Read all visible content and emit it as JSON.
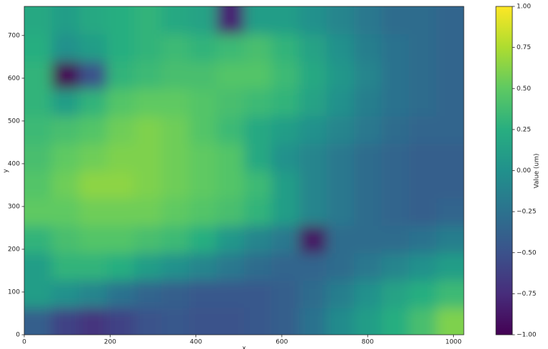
{
  "chart_data": {
    "type": "heatmap",
    "colormap": "viridis",
    "xlabel": "x",
    "ylabel": "y",
    "colorbar_label": "Value (um)",
    "x": [
      32,
      96,
      160,
      224,
      288,
      352,
      416,
      480,
      544,
      608,
      672,
      736,
      800,
      864,
      928,
      992
    ],
    "y": [
      32,
      96,
      160,
      224,
      288,
      352,
      416,
      480,
      544,
      608,
      672,
      736
    ],
    "values": [
      [
        -0.4,
        -0.6,
        -0.7,
        -0.6,
        -0.5,
        -0.45,
        -0.5,
        -0.5,
        -0.45,
        -0.4,
        -0.25,
        -0.05,
        0.1,
        0.25,
        0.4,
        0.6
      ],
      [
        0.1,
        0.0,
        -0.1,
        -0.25,
        -0.35,
        -0.4,
        -0.45,
        -0.45,
        -0.45,
        -0.4,
        -0.3,
        -0.15,
        0.0,
        0.15,
        0.25,
        0.35
      ],
      [
        0.1,
        0.3,
        0.3,
        0.25,
        0.1,
        0.0,
        -0.1,
        -0.2,
        -0.3,
        -0.35,
        -0.35,
        -0.3,
        -0.2,
        -0.1,
        0.0,
        0.1
      ],
      [
        0.3,
        0.4,
        0.45,
        0.45,
        0.4,
        0.35,
        0.25,
        0.05,
        -0.1,
        -0.2,
        -0.9,
        -0.3,
        -0.3,
        -0.3,
        -0.25,
        -0.15
      ],
      [
        0.5,
        0.5,
        0.55,
        0.55,
        0.55,
        0.5,
        0.45,
        0.4,
        0.3,
        0.1,
        -0.1,
        -0.2,
        -0.3,
        -0.35,
        -0.4,
        -0.35
      ],
      [
        0.45,
        0.55,
        0.65,
        0.65,
        0.6,
        0.55,
        0.5,
        0.45,
        0.35,
        0.1,
        -0.1,
        -0.2,
        -0.3,
        -0.35,
        -0.4,
        -0.4
      ],
      [
        0.4,
        0.5,
        0.55,
        0.6,
        0.6,
        0.55,
        0.5,
        0.45,
        0.2,
        0.0,
        -0.1,
        -0.2,
        -0.3,
        -0.35,
        -0.4,
        -0.4
      ],
      [
        0.35,
        0.4,
        0.45,
        0.55,
        0.6,
        0.55,
        0.45,
        0.35,
        0.2,
        0.1,
        0.0,
        -0.1,
        -0.2,
        -0.3,
        -0.35,
        -0.35
      ],
      [
        0.3,
        0.1,
        0.3,
        0.45,
        0.5,
        0.5,
        0.45,
        0.4,
        0.35,
        0.3,
        0.15,
        0.0,
        -0.15,
        -0.25,
        -0.3,
        -0.35
      ],
      [
        0.3,
        -1,
        -0.5,
        0.3,
        0.35,
        0.4,
        0.4,
        0.45,
        0.45,
        0.35,
        0.2,
        0.05,
        -0.1,
        -0.25,
        -0.3,
        -0.35
      ],
      [
        0.25,
        0.0,
        0.1,
        0.25,
        0.3,
        0.35,
        0.3,
        0.35,
        0.4,
        0.3,
        0.15,
        0.0,
        -0.15,
        -0.25,
        -0.3,
        -0.35
      ],
      [
        0.2,
        0.1,
        0.2,
        0.25,
        0.3,
        0.2,
        0.15,
        -0.8,
        0.1,
        0.1,
        0.0,
        -0.1,
        -0.2,
        -0.3,
        -0.3,
        -0.35
      ]
    ],
    "xlim": [
      0,
      1024
    ],
    "ylim": [
      0,
      768
    ],
    "xticks": [
      0,
      200,
      400,
      600,
      800,
      1000
    ],
    "yticks": [
      0,
      100,
      200,
      300,
      400,
      500,
      600,
      700
    ],
    "clim": [
      -1,
      1
    ],
    "cticks": [
      {
        "value": -1,
        "label": "−1.00"
      },
      {
        "value": -0.75,
        "label": "−0.75"
      },
      {
        "value": -0.5,
        "label": "−0.50"
      },
      {
        "value": -0.25,
        "label": "−0.25"
      },
      {
        "value": 0,
        "label": "0.00"
      },
      {
        "value": 0.25,
        "label": "0.25"
      },
      {
        "value": 0.5,
        "label": "0.50"
      },
      {
        "value": 0.75,
        "label": "0.75"
      },
      {
        "value": 1,
        "label": "1.00"
      }
    ]
  }
}
